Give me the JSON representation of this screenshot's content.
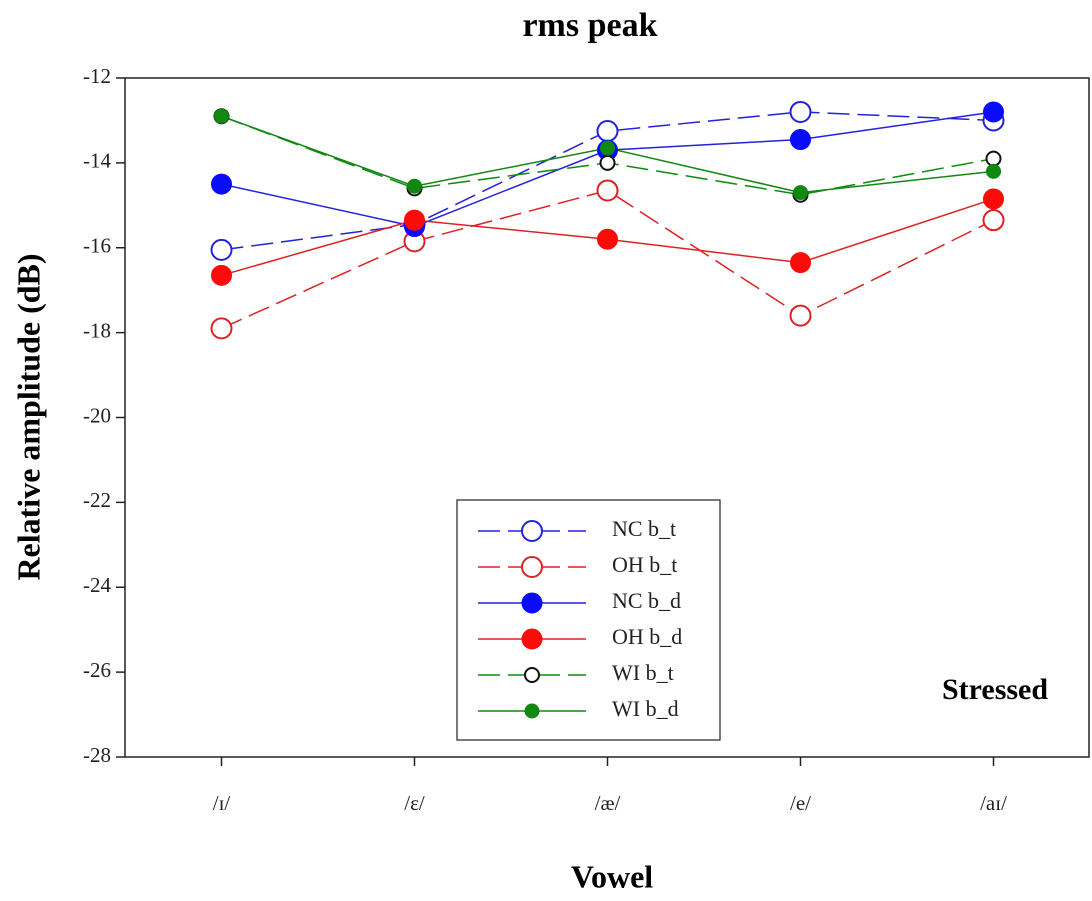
{
  "chart_data": {
    "type": "line",
    "title": "rms peak",
    "x_label": "Vowel",
    "y_label": "Relative amplitude (dB)",
    "annotation": "Stressed",
    "categories": [
      "/ɪ/",
      "/ɛ/",
      "/æ/",
      "/e/",
      "/aɪ/"
    ],
    "ylim": [
      -28,
      -12
    ],
    "yticks": [
      -28,
      -26,
      -24,
      -22,
      -20,
      -18,
      -16,
      -14,
      -12
    ],
    "series": [
      {
        "name": "NC b_t",
        "color": "#2222dd",
        "dashed": true,
        "marker": "open",
        "marker_color": "#2222dd",
        "values": [
          -16.05,
          -15.45,
          -13.25,
          -12.8,
          -13.0
        ]
      },
      {
        "name": "OH b_t",
        "color": "#dd2222",
        "dashed": true,
        "marker": "open",
        "marker_color": "#dd2222",
        "values": [
          -17.9,
          -15.85,
          -14.65,
          -17.6,
          -15.35
        ]
      },
      {
        "name": "NC b_d",
        "color": "#2222dd",
        "dashed": false,
        "marker": "filled",
        "marker_color": "#0a0aff",
        "values": [
          -14.5,
          -15.5,
          -13.7,
          -13.45,
          -12.8
        ]
      },
      {
        "name": "OH b_d",
        "color": "#dd2222",
        "dashed": false,
        "marker": "filled",
        "marker_color": "#ff0a0a",
        "values": [
          -16.65,
          -15.35,
          -15.8,
          -16.35,
          -14.85
        ]
      },
      {
        "name": "WI b_t",
        "color": "#118811",
        "dashed": true,
        "marker": "open-small",
        "marker_color": "#111111",
        "values": [
          -12.9,
          -14.6,
          -14.0,
          -14.75,
          -13.9
        ]
      },
      {
        "name": "WI b_d",
        "color": "#118811",
        "dashed": false,
        "marker": "filled-small",
        "marker_color": "#118811",
        "values": [
          -12.9,
          -14.55,
          -13.65,
          -14.7,
          -14.2
        ]
      }
    ]
  }
}
